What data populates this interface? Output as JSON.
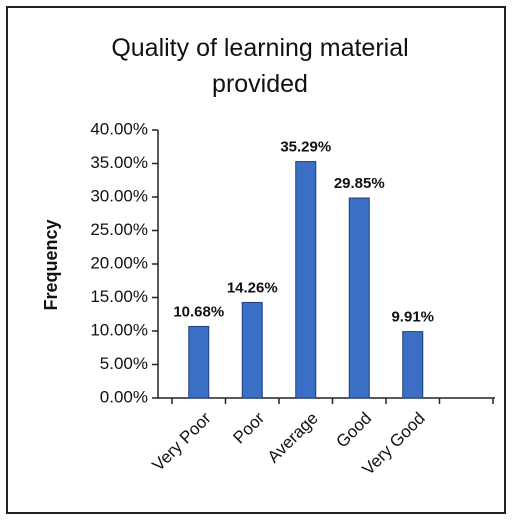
{
  "chart_data": {
    "type": "bar",
    "title": "Quality of learning material provided",
    "y_label": "Frequency",
    "categories": [
      "Very Poor",
      "Poor",
      "Average",
      "Good",
      "Very Good"
    ],
    "values": [
      10.68,
      14.26,
      35.29,
      29.85,
      9.91
    ],
    "value_labels": [
      "10.68%",
      "14.26%",
      "35.29%",
      "29.85%",
      "9.91%"
    ],
    "color": "#3b6fc6",
    "ylim": [
      0,
      40
    ],
    "yticks": [
      {
        "value": 0,
        "label": "0.00%"
      },
      {
        "value": 5,
        "label": "5.00%"
      },
      {
        "value": 10,
        "label": "10.00%"
      },
      {
        "value": 15,
        "label": "15.00%"
      },
      {
        "value": 20,
        "label": "20.00%"
      },
      {
        "value": 25,
        "label": "25.00%"
      },
      {
        "value": 30,
        "label": "30.00%"
      },
      {
        "value": 35,
        "label": "35.00%"
      },
      {
        "value": 40,
        "label": "40.00%"
      }
    ],
    "grid": false
  }
}
